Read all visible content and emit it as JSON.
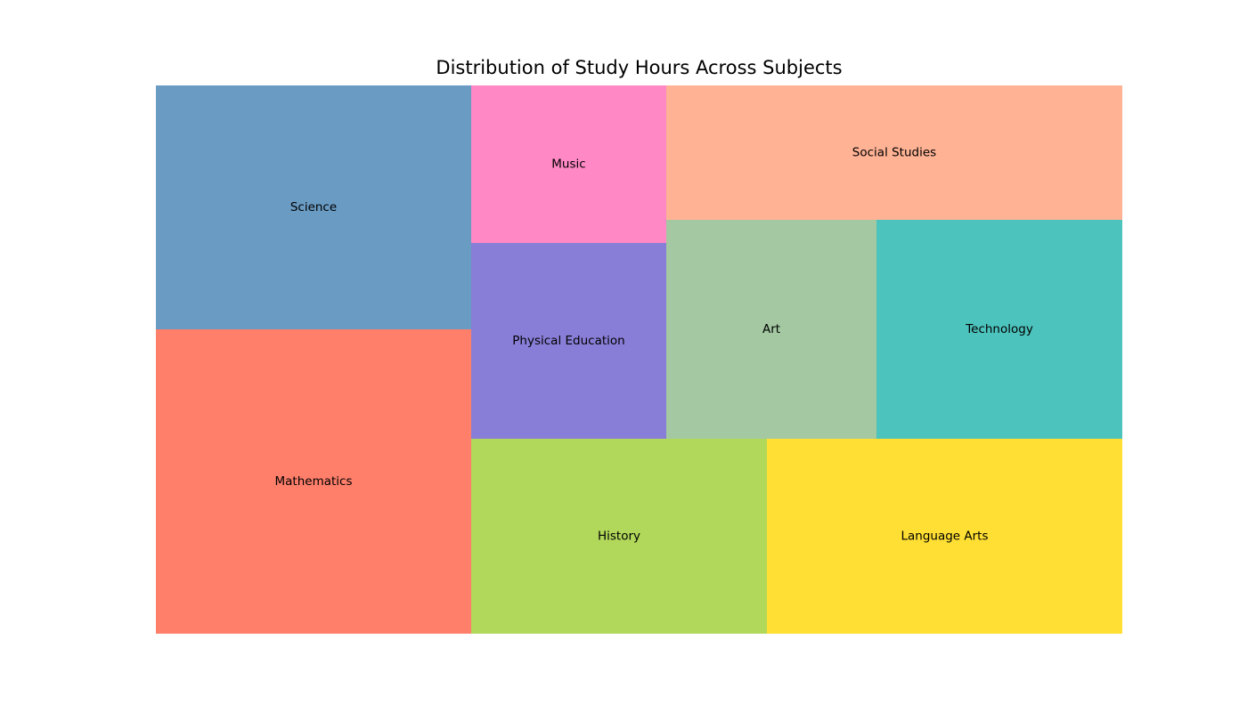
{
  "chart_data": {
    "type": "treemap",
    "title": "Distribution of Study Hours Across Subjects",
    "items": [
      {
        "label": "Mathematics",
        "value": 20,
        "color": "#FF7F6B"
      },
      {
        "label": "Science",
        "value": 15,
        "color": "#6A9BC3"
      },
      {
        "label": "History",
        "value": 11.5,
        "color": "#B1D85A"
      },
      {
        "label": "Language Arts",
        "value": 14,
        "color": "#FFDF33"
      },
      {
        "label": "Physical Education",
        "value": 7.5,
        "color": "#887ED7"
      },
      {
        "label": "Music",
        "value": 6,
        "color": "#FF88C5"
      },
      {
        "label": "Art",
        "value": 9,
        "color": "#A3C8A2"
      },
      {
        "label": "Technology",
        "value": 10.5,
        "color": "#4DC3BD"
      },
      {
        "label": "Social Studies",
        "value": 12.2,
        "color": "#FFB294"
      }
    ]
  }
}
